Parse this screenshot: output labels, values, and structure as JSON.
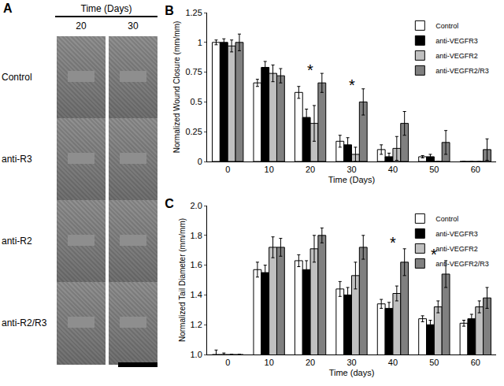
{
  "photo_panel": {
    "label": "A",
    "header": "Time (Days)",
    "columns": [
      "20",
      "30"
    ],
    "rows": [
      "Control",
      "anti-R3",
      "anti-R2",
      "anti-R2/R3"
    ]
  },
  "chart_data": [
    {
      "type": "bar",
      "title": "B",
      "x_label": "Time (Days)",
      "y_label": "Normalized Wound Closure (mm/mm)",
      "categories": [
        "0",
        "10",
        "20",
        "30",
        "40",
        "50",
        "60"
      ],
      "series": [
        {
          "name": "Control",
          "color": "#ffffff",
          "values": [
            1.0,
            0.66,
            0.58,
            0.17,
            0.1,
            0.04,
            0
          ],
          "errors": [
            0.02,
            0.03,
            0.05,
            0.05,
            0.04,
            0.01,
            0
          ]
        },
        {
          "name": "anti-VEGFR3",
          "color": "#000000",
          "values": [
            1.0,
            0.79,
            0.37,
            0.14,
            0.04,
            0.04,
            0
          ],
          "errors": [
            0.03,
            0.05,
            0.07,
            0.06,
            0.03,
            0.02,
            0
          ]
        },
        {
          "name": "anti-VEGFR2",
          "color": "#c0c0c0",
          "values": [
            0.97,
            0.74,
            0.32,
            0.06,
            0.11,
            0,
            0
          ],
          "errors": [
            0.05,
            0.07,
            0.15,
            0.06,
            0.1,
            0,
            0
          ]
        },
        {
          "name": "anti-VEGFR2/R3",
          "color": "#808080",
          "values": [
            1.0,
            0.72,
            0.66,
            0.5,
            0.32,
            0.16,
            0.1
          ],
          "errors": [
            0.07,
            0.06,
            0.08,
            0.11,
            0.1,
            0.1,
            0.09
          ]
        }
      ],
      "ylim": [
        0,
        1.25
      ],
      "yticks": [
        0,
        0.25,
        0.5,
        0.75,
        1,
        1.25
      ],
      "legend": "top-right",
      "annotations": [
        {
          "text": "*",
          "x": "20",
          "y": 0.77
        },
        {
          "text": "*",
          "x": "30",
          "y": 0.64
        }
      ]
    },
    {
      "type": "bar",
      "title": "C",
      "x_label": "Time (days)",
      "y_label": "Normalized Tail Diameter (mm/mm)",
      "categories": [
        "0",
        "10",
        "20",
        "30",
        "40",
        "50",
        "60"
      ],
      "series": [
        {
          "name": "Control",
          "color": "#ffffff",
          "values": [
            1.0,
            1.57,
            1.63,
            1.44,
            1.34,
            1.24,
            1.21
          ],
          "errors": [
            0.03,
            0.05,
            0.04,
            0.05,
            0.03,
            0.02,
            0.02
          ]
        },
        {
          "name": "anti-VEGFR3",
          "color": "#000000",
          "values": [
            1.0,
            1.55,
            1.57,
            1.4,
            1.31,
            1.2,
            1.24
          ],
          "errors": [
            0.01,
            0.05,
            0.06,
            0.05,
            0.04,
            0.03,
            0.03
          ]
        },
        {
          "name": "anti-VEGFR2",
          "color": "#c0c0c0",
          "values": [
            1.0,
            1.72,
            1.71,
            1.53,
            1.41,
            1.32,
            1.32
          ],
          "errors": [
            0,
            0.07,
            0.09,
            0.09,
            0.05,
            0.04,
            0.04
          ]
        },
        {
          "name": "anti-VEGFR2/R3",
          "color": "#808080",
          "values": [
            1.0,
            1.72,
            1.8,
            1.72,
            1.62,
            1.54,
            1.38
          ],
          "errors": [
            0,
            0.06,
            0.05,
            0.08,
            0.09,
            0.09,
            0.07
          ]
        }
      ],
      "ylim": [
        1.0,
        2.0
      ],
      "yticks": [
        {
          "value": 1.0,
          "label": "1.0"
        },
        1.2,
        1.4,
        1.6,
        1.8,
        {
          "value": 2.0,
          "label": "2.0"
        }
      ],
      "legend": "top-right",
      "annotations": [
        {
          "text": "*",
          "x": "40",
          "y": 1.75
        },
        {
          "text": "*",
          "x": "50",
          "y": 1.67
        }
      ]
    }
  ]
}
